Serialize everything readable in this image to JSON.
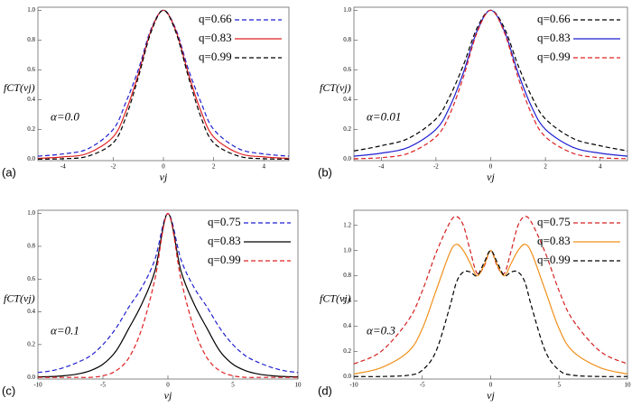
{
  "chart_data": [
    {
      "type": "line",
      "panel_label": "(a)",
      "annotation": "α=0.0",
      "xlabel": "vj",
      "ylabel": "fCT(vj)",
      "x": [
        -5,
        -4,
        -3,
        -2,
        -1.5,
        -1,
        -0.5,
        0,
        0.5,
        1,
        1.5,
        2,
        3,
        4,
        5
      ],
      "xlim": [
        -5,
        5
      ],
      "xticks": [
        -4,
        -2,
        0,
        2,
        4
      ],
      "ylim": [
        -0.01,
        1.02
      ],
      "yticks": [
        {
          "value": 0,
          "label": "0.0"
        },
        0.2,
        0.4,
        0.6,
        0.8,
        {
          "value": 1,
          "label": "1.0"
        }
      ],
      "series": [
        {
          "name": "q=0.66",
          "color": "#1f1fd0",
          "dashed": true,
          "values": [
            0.02,
            0.035,
            0.07,
            0.2,
            0.38,
            0.6,
            0.87,
            1,
            0.87,
            0.6,
            0.38,
            0.2,
            0.07,
            0.035,
            0.02
          ]
        },
        {
          "name": "q=0.83",
          "color": "#e02020",
          "dashed": false,
          "values": [
            0.005,
            0.015,
            0.04,
            0.15,
            0.32,
            0.57,
            0.86,
            1,
            0.86,
            0.57,
            0.32,
            0.15,
            0.04,
            0.015,
            0.005
          ]
        },
        {
          "name": "q=0.99",
          "color": "#000000",
          "dashed": true,
          "values": [
            0,
            0.003,
            0.02,
            0.11,
            0.28,
            0.55,
            0.85,
            1,
            0.85,
            0.55,
            0.28,
            0.11,
            0.02,
            0.003,
            0
          ]
        }
      ]
    },
    {
      "type": "line",
      "panel_label": "(b)",
      "annotation": "α=0.01",
      "xlabel": "vj",
      "ylabel": "fCT(vj)",
      "x": [
        -5,
        -4,
        -3,
        -2,
        -1.5,
        -1,
        -0.5,
        0,
        0.5,
        1,
        1.5,
        2,
        3,
        4,
        5
      ],
      "xlim": [
        -5,
        5
      ],
      "xticks": [
        -4,
        -2,
        0,
        2,
        4
      ],
      "ylim": [
        -0.01,
        1.02
      ],
      "yticks": [
        {
          "value": 0,
          "label": "0.0"
        },
        0.2,
        0.4,
        0.6,
        0.8,
        {
          "value": 1,
          "label": "1.0"
        }
      ],
      "series": [
        {
          "name": "q=0.66",
          "color": "#000000",
          "dashed": true,
          "values": [
            0.055,
            0.09,
            0.14,
            0.27,
            0.42,
            0.63,
            0.88,
            1,
            0.88,
            0.63,
            0.42,
            0.27,
            0.14,
            0.09,
            0.055
          ]
        },
        {
          "name": "q=0.83",
          "color": "#1f1fd0",
          "dashed": false,
          "values": [
            0.02,
            0.04,
            0.08,
            0.2,
            0.35,
            0.58,
            0.86,
            1,
            0.86,
            0.58,
            0.35,
            0.2,
            0.08,
            0.04,
            0.02
          ]
        },
        {
          "name": "q=0.99",
          "color": "#e02020",
          "dashed": true,
          "values": [
            0.003,
            0.01,
            0.04,
            0.15,
            0.3,
            0.55,
            0.85,
            1,
            0.85,
            0.55,
            0.3,
            0.15,
            0.04,
            0.01,
            0.003
          ]
        }
      ]
    },
    {
      "type": "line",
      "panel_label": "(c)",
      "annotation": "α=0.1",
      "xlabel": "vj",
      "ylabel": "fCT(vj)",
      "x": [
        -10,
        -9,
        -8,
        -7,
        -6,
        -5,
        -4,
        -3,
        -2,
        -1,
        0,
        1,
        2,
        3,
        4,
        5,
        6,
        7,
        8,
        9,
        10
      ],
      "xlim": [
        -10,
        10
      ],
      "xticks": [
        -10,
        -5,
        0,
        5,
        10
      ],
      "ylim": [
        -0.01,
        1.02
      ],
      "yticks": [
        {
          "value": 0,
          "label": "0.0"
        },
        0.2,
        0.4,
        0.6,
        0.8,
        {
          "value": 1,
          "label": "1.0"
        }
      ],
      "series": [
        {
          "name": "q=0.75",
          "color": "#1f1fd0",
          "dashed": true,
          "values": [
            0.03,
            0.04,
            0.06,
            0.09,
            0.13,
            0.2,
            0.3,
            0.43,
            0.55,
            0.72,
            1,
            0.72,
            0.55,
            0.43,
            0.3,
            0.2,
            0.13,
            0.09,
            0.06,
            0.04,
            0.03
          ]
        },
        {
          "name": "q=0.83",
          "color": "#000000",
          "dashed": false,
          "values": [
            0.003,
            0.005,
            0.01,
            0.02,
            0.04,
            0.08,
            0.16,
            0.3,
            0.45,
            0.65,
            1,
            0.65,
            0.45,
            0.3,
            0.16,
            0.08,
            0.04,
            0.02,
            0.01,
            0.005,
            0.003
          ]
        },
        {
          "name": "q=0.99",
          "color": "#e02020",
          "dashed": true,
          "values": [
            0,
            0,
            0,
            0,
            0,
            0.01,
            0.04,
            0.12,
            0.3,
            0.6,
            1,
            0.6,
            0.3,
            0.12,
            0.04,
            0.01,
            0,
            0,
            0,
            0,
            0
          ]
        }
      ]
    },
    {
      "type": "line",
      "panel_label": "(d)",
      "annotation": "α=0.3",
      "xlabel": "vj",
      "ylabel": "fCT(vj)",
      "x": [
        -10,
        -8,
        -6,
        -5,
        -4,
        -3,
        -2.5,
        -2,
        -1.5,
        -1,
        -0.5,
        0,
        0.5,
        1,
        1.5,
        2,
        2.5,
        3,
        4,
        5,
        6,
        8,
        10
      ],
      "xlim": [
        -10,
        10
      ],
      "xticks": [
        -10,
        -5,
        0,
        5,
        10
      ],
      "ylim": [
        -0.02,
        1.32
      ],
      "yticks": [
        {
          "value": 0,
          "label": "0.0"
        },
        0.2,
        0.4,
        0.6,
        0.8,
        {
          "value": 1,
          "label": "1.0"
        },
        1.2
      ],
      "series": [
        {
          "name": "q=0.75",
          "color": "#d42020",
          "dashed": true,
          "values": [
            0.1,
            0.2,
            0.45,
            0.68,
            0.98,
            1.22,
            1.27,
            1.2,
            1.0,
            0.82,
            0.87,
            1,
            0.87,
            0.82,
            1.0,
            1.2,
            1.27,
            1.22,
            0.98,
            0.68,
            0.45,
            0.2,
            0.1
          ]
        },
        {
          "name": "q=0.83",
          "color": "#f0901a",
          "dashed": false,
          "values": [
            0.02,
            0.07,
            0.2,
            0.38,
            0.68,
            0.98,
            1.05,
            1.0,
            0.9,
            0.8,
            0.88,
            1,
            0.88,
            0.8,
            0.9,
            1.0,
            1.05,
            0.98,
            0.68,
            0.38,
            0.2,
            0.07,
            0.02
          ]
        },
        {
          "name": "q=0.99",
          "color": "#000000",
          "dashed": true,
          "values": [
            0,
            0,
            0.01,
            0.05,
            0.2,
            0.55,
            0.75,
            0.83,
            0.83,
            0.8,
            0.9,
            1,
            0.9,
            0.8,
            0.83,
            0.83,
            0.75,
            0.55,
            0.2,
            0.05,
            0.01,
            0,
            0
          ]
        }
      ]
    }
  ]
}
